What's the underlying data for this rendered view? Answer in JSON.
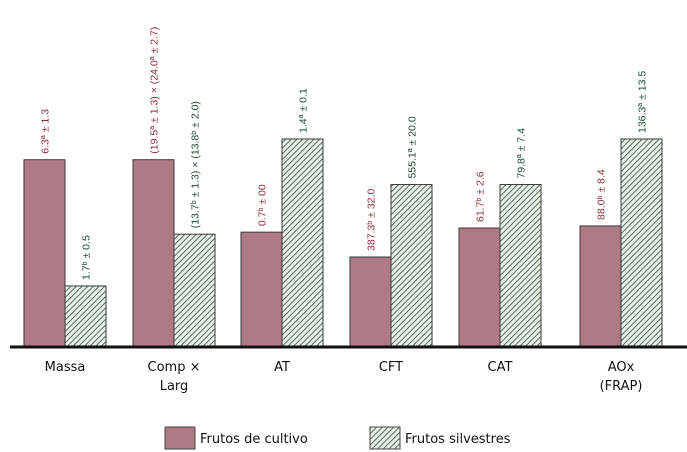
{
  "chart_data": {
    "type": "bar",
    "title": "",
    "xlabel": "",
    "ylabel": "",
    "grid": false,
    "legend_position": "bottom",
    "categories": [
      [
        "Massa"
      ],
      [
        "Comp ×",
        "Larg"
      ],
      [
        "AT"
      ],
      [
        "CFT"
      ],
      [
        "CAT"
      ],
      [
        "AOx",
        "(FRAP)"
      ]
    ],
    "bar_heights_relative": {
      "note": "bar values are shown only by height; heights are relative to the tallest bar (1.0)"
    },
    "series": [
      {
        "name": "Frutos de cultivo",
        "color": "#b07a84",
        "fill": "solid",
        "label_color": "#8b2f3d",
        "relative_values": [
          0.9,
          0.9,
          0.55,
          0.43,
          0.57,
          0.58
        ],
        "labels": [
          "6.3ª ± 1.3",
          "(19.5ª ± 1.3) × (24.0ª ± 2.7)",
          "0.7ᵇ ± 00",
          "387.3ᵇ ± 32.0",
          "61.7ᵇ ± 2.6",
          "88.0ᵇ ± 8.4"
        ]
      },
      {
        "name": "Frutos silvestres",
        "color": "#6b8a78",
        "fill": "hatched",
        "label_color": "#1f4a33",
        "relative_values": [
          0.29,
          0.54,
          1.0,
          0.78,
          0.78,
          1.0
        ],
        "labels": [
          "1.7ᵇ ± 0.5",
          "(13.7ᵇ ± 1.3) × (13.8ᵇ ± 2.0)",
          "1.4ª ± 0.1",
          "555.1ª ± 20.0",
          "79.8ª ± 7.4",
          "136.3ª ± 13.5"
        ]
      }
    ]
  },
  "legend": {
    "items": [
      {
        "label": "Frutos de cultivo",
        "swatch": "solid"
      },
      {
        "label": "Frutos silvestres",
        "swatch": "hatched"
      }
    ]
  }
}
